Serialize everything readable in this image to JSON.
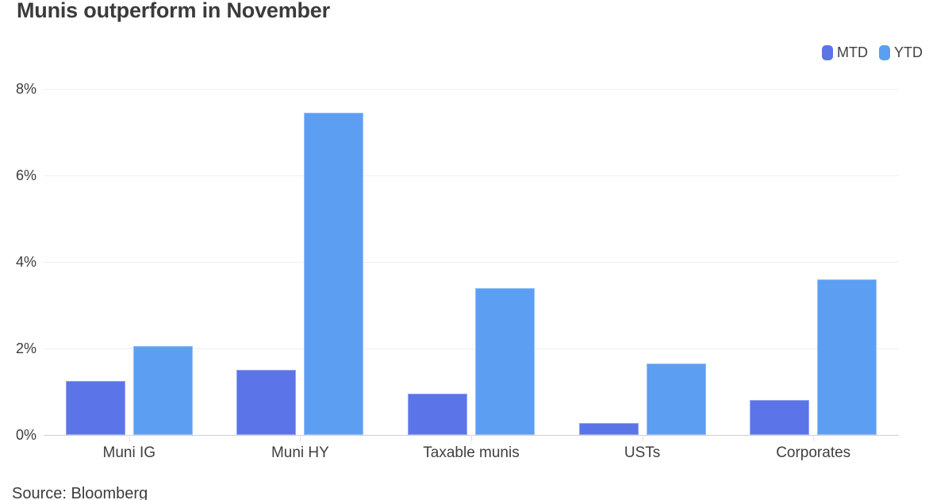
{
  "title": "Munis outperform in November",
  "source": "Source: Bloomberg",
  "legend": {
    "items": [
      {
        "label": "MTD",
        "color": "#5b74e8"
      },
      {
        "label": "YTD",
        "color": "#5c9ff2"
      }
    ]
  },
  "chart_data": {
    "type": "bar",
    "title": "Munis outperform in November",
    "categories": [
      "Muni IG",
      "Muni HY",
      "Taxable munis",
      "USTs",
      "Corporates"
    ],
    "series": [
      {
        "name": "MTD",
        "color": "#5b74e8",
        "values": [
          1.25,
          1.5,
          0.95,
          0.27,
          0.8
        ]
      },
      {
        "name": "YTD",
        "color": "#5c9ff2",
        "values": [
          2.05,
          7.45,
          3.4,
          1.65,
          3.6
        ]
      }
    ],
    "xlabel": "",
    "ylabel": "",
    "ylim": [
      0,
      8
    ],
    "y_ticks": [
      {
        "value": 0,
        "label": "0%"
      },
      {
        "value": 2,
        "label": "2%"
      },
      {
        "value": 4,
        "label": "4%"
      },
      {
        "value": 6,
        "label": "6%"
      },
      {
        "value": 8,
        "label": "8%"
      }
    ],
    "grid": true,
    "legend_position": "top-right",
    "source": "Source: Bloomberg"
  }
}
